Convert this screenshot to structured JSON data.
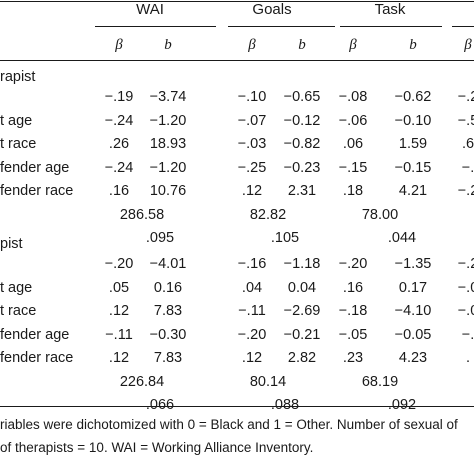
{
  "header": {
    "groups": [
      "WAI",
      "Goals",
      "Task",
      ""
    ],
    "subheaders": [
      "β",
      "b",
      "β",
      "b",
      "β",
      "b",
      "β"
    ]
  },
  "sections": [
    {
      "label": "rapist",
      "rows": [
        {
          "label": "",
          "cells": [
            "−.19",
            "−3.74",
            "−.10",
            "−0.65",
            "−.08",
            "−0.62",
            "−.2"
          ]
        },
        {
          "label": "t age",
          "cells": [
            "−.24",
            "−1.20",
            "−.07",
            "−0.12",
            "−.06",
            "−0.10",
            "−.5"
          ]
        },
        {
          "label": "t race",
          "cells": [
            ".26",
            "18.93",
            "−.03",
            "−0.82",
            ".06",
            "1.59",
            ".6"
          ]
        },
        {
          "label": "fender age",
          "cells": [
            "−.24",
            "−1.20",
            "−.25",
            "−0.23",
            "−.15",
            "−0.15",
            "−."
          ]
        },
        {
          "label": "fender race",
          "cells": [
            ".16",
            "10.76",
            ".12",
            "2.31",
            ".18",
            "4.21",
            "−.2"
          ]
        }
      ],
      "stat1": [
        "286.58",
        "82.82",
        "78.00"
      ],
      "stat2": [
        ".095",
        ".105",
        ".044"
      ]
    },
    {
      "label": "pist",
      "rows": [
        {
          "label": "",
          "cells": [
            "−.20",
            "−4.01",
            "−.16",
            "−1.18",
            "−.20",
            "−1.35",
            "−.2"
          ]
        },
        {
          "label": "t age",
          "cells": [
            ".05",
            "0.16",
            ".04",
            "0.04",
            ".16",
            "0.17",
            "−.0"
          ]
        },
        {
          "label": "t race",
          "cells": [
            ".12",
            "7.83",
            "−.11",
            "−2.69",
            "−.18",
            "−4.10",
            "−.0"
          ]
        },
        {
          "label": "fender age",
          "cells": [
            "−.11",
            "−0.30",
            "−.20",
            "−0.21",
            "−.05",
            "−0.05",
            "−."
          ]
        },
        {
          "label": "fender race",
          "cells": [
            ".12",
            "7.83",
            ".12",
            "2.82",
            ".23",
            "4.23",
            "."
          ]
        }
      ],
      "stat1": [
        "226.84",
        "80.14",
        "68.19"
      ],
      "stat2": [
        ".066",
        ".088",
        ".092"
      ]
    }
  ],
  "notes": [
    "riables were dichotomized with 0 = Black and 1 = Other. Number of sexual of",
    "of therapists = 10. WAI = Working Alliance Inventory."
  ]
}
